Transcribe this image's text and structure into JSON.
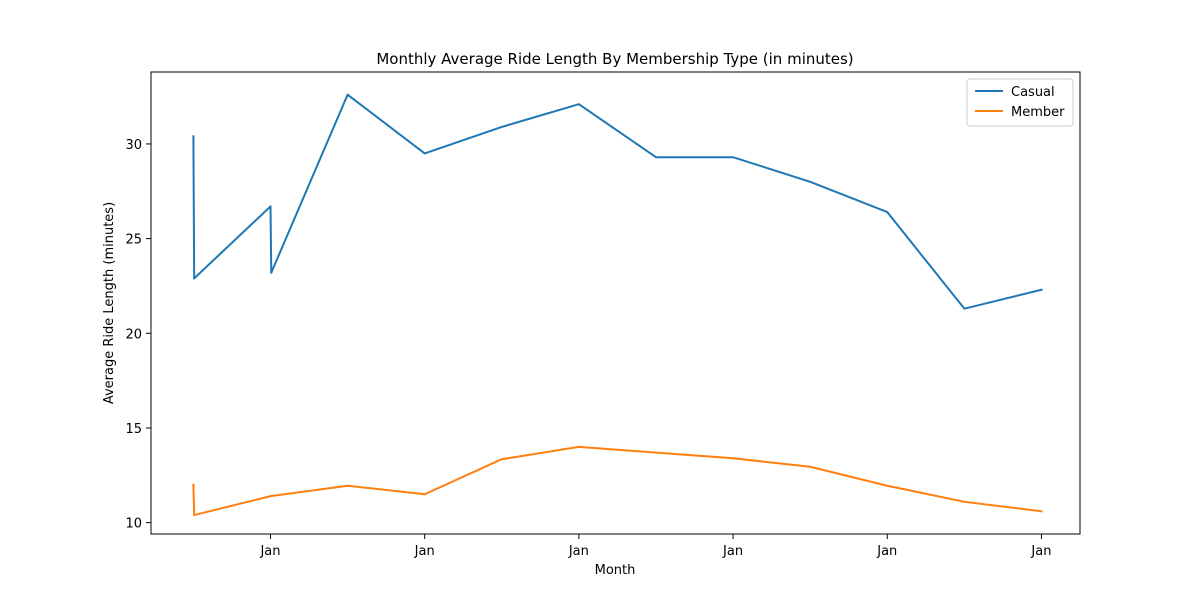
{
  "chart_data": {
    "type": "line",
    "title": "Monthly Average Ride Length By Membership Type (in minutes)",
    "xlabel": "Month",
    "ylabel": "Average Ride Length (minutes)",
    "x": [
      0,
      0.01,
      1,
      1.01,
      2,
      3,
      4,
      5,
      6,
      7,
      8,
      9,
      10,
      11
    ],
    "x_ticks": [
      {
        "x": 1,
        "label": "Jan"
      },
      {
        "x": 3,
        "label": "Jan"
      },
      {
        "x": 5,
        "label": "Jan"
      },
      {
        "x": 7,
        "label": "Jan"
      },
      {
        "x": 9,
        "label": "Jan"
      },
      {
        "x": 11,
        "label": "Jan"
      }
    ],
    "xlim": [
      -0.55,
      11.5
    ],
    "ylim": [
      9.4,
      33.8
    ],
    "y_ticks": [
      10,
      15,
      20,
      25,
      30
    ],
    "series": [
      {
        "name": "Casual",
        "color": "#1f77b4",
        "points": [
          [
            0,
            30.4
          ],
          [
            0.01,
            22.9
          ],
          [
            1,
            26.7
          ],
          [
            1.01,
            23.2
          ],
          [
            2,
            32.6
          ],
          [
            3,
            29.5
          ],
          [
            4,
            30.9
          ],
          [
            5,
            32.1
          ],
          [
            6,
            29.3
          ],
          [
            7,
            29.3
          ],
          [
            8,
            28.0
          ],
          [
            9,
            26.4
          ],
          [
            10,
            21.3
          ],
          [
            11,
            22.3
          ]
        ]
      },
      {
        "name": "Member",
        "color": "#ff7f0e",
        "points": [
          [
            0,
            12.0
          ],
          [
            0.01,
            10.4
          ],
          [
            1,
            11.4
          ],
          [
            2,
            11.95
          ],
          [
            3,
            11.5
          ],
          [
            4,
            13.35
          ],
          [
            5,
            14.0
          ],
          [
            6,
            13.7
          ],
          [
            7,
            13.4
          ],
          [
            8,
            12.95
          ],
          [
            9,
            11.95
          ],
          [
            10,
            11.1
          ],
          [
            11,
            10.6
          ]
        ]
      }
    ],
    "legend_position": "top-right",
    "grid": false
  }
}
